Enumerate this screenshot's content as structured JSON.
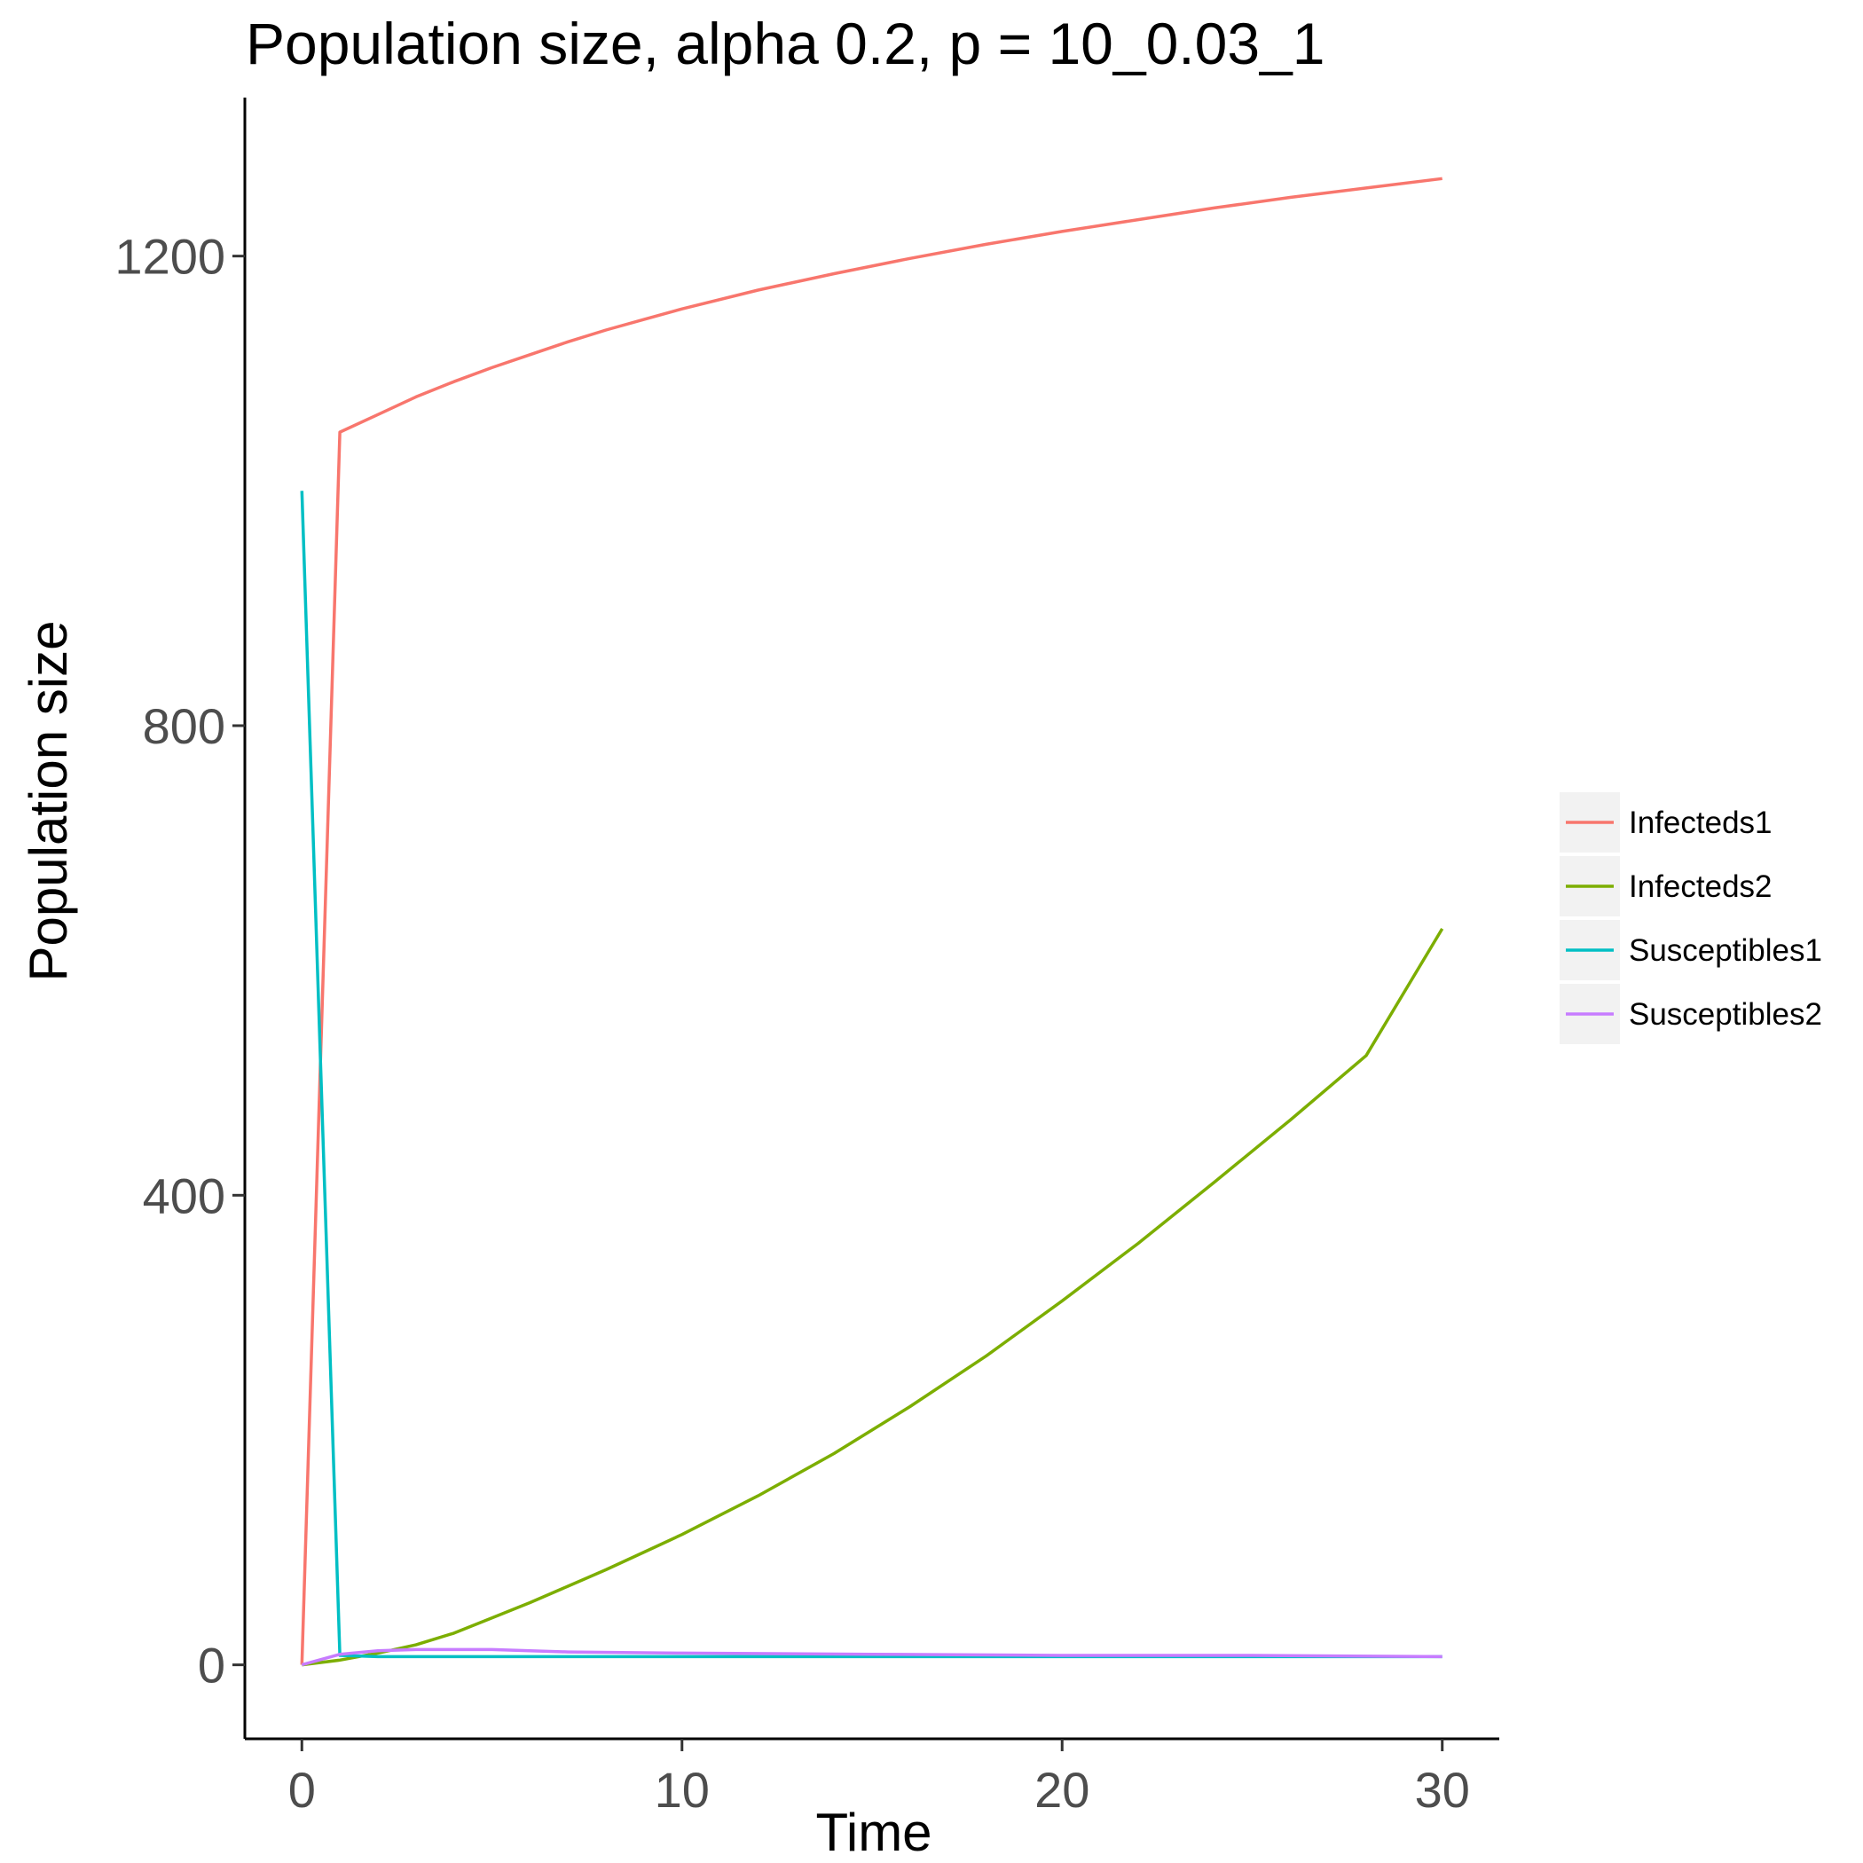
{
  "chart_data": {
    "type": "line",
    "title": "Population size, alpha 0.2, p = 10_0.03_1",
    "xlabel": "Time",
    "ylabel": "Population size",
    "xlim": [
      -1.5,
      31.5
    ],
    "ylim": [
      -63,
      1335
    ],
    "xticks": [
      0,
      10,
      20,
      30
    ],
    "yticks": [
      0,
      400,
      800,
      1200
    ],
    "grid": false,
    "legend_position": "right",
    "series": [
      {
        "name": "Infecteds1",
        "color": "#F8766D",
        "x": [
          0,
          1,
          2,
          3,
          4,
          5,
          6,
          7,
          8,
          9,
          10,
          12,
          14,
          16,
          18,
          20,
          22,
          24,
          26,
          28,
          30
        ],
        "y": [
          0,
          1050,
          1065,
          1080,
          1093,
          1105,
          1116,
          1127,
          1137,
          1146,
          1155,
          1171,
          1185,
          1198,
          1210,
          1221,
          1231,
          1241,
          1250,
          1258,
          1266
        ]
      },
      {
        "name": "Infecteds2",
        "color": "#7CAE00",
        "x": [
          0,
          1,
          2,
          3,
          4,
          5,
          6,
          7,
          8,
          9,
          10,
          12,
          14,
          16,
          18,
          20,
          22,
          24,
          26,
          28,
          30
        ],
        "y": [
          0,
          4,
          10,
          17,
          27,
          40,
          53,
          67,
          81,
          96,
          111,
          144,
          180,
          220,
          263,
          310,
          359,
          411,
          464,
          519,
          627
        ]
      },
      {
        "name": "Susceptibles1",
        "color": "#00BFC4",
        "x": [
          0,
          1,
          2,
          5,
          10,
          15,
          20,
          25,
          30
        ],
        "y": [
          1000,
          8,
          7,
          7,
          7,
          7,
          7,
          7,
          7
        ]
      },
      {
        "name": "Susceptibles2",
        "color": "#C77CFF",
        "x": [
          0,
          1,
          2,
          3,
          4,
          5,
          7,
          10,
          15,
          20,
          25,
          30
        ],
        "y": [
          0,
          9,
          12,
          13,
          13,
          13,
          11,
          10,
          9,
          8,
          8,
          7
        ]
      }
    ]
  }
}
